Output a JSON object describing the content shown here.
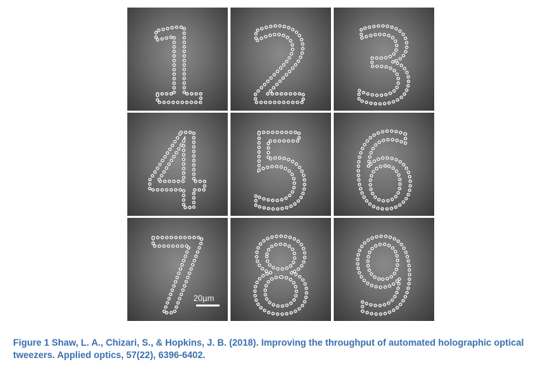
{
  "figure": {
    "panels": [
      {
        "digit": "1"
      },
      {
        "digit": "2"
      },
      {
        "digit": "3"
      },
      {
        "digit": "4"
      },
      {
        "digit": "5"
      },
      {
        "digit": "6"
      },
      {
        "digit": "7"
      },
      {
        "digit": "8"
      },
      {
        "digit": "9"
      }
    ],
    "scale_bar_label": "20µm"
  },
  "caption": "Figure 1 Shaw, L. A., Chizari, S., & Hopkins, J. B. (2018). Improving the throughput of automated holographic optical tweezers. Applied optics, 57(22), 6396-6402."
}
